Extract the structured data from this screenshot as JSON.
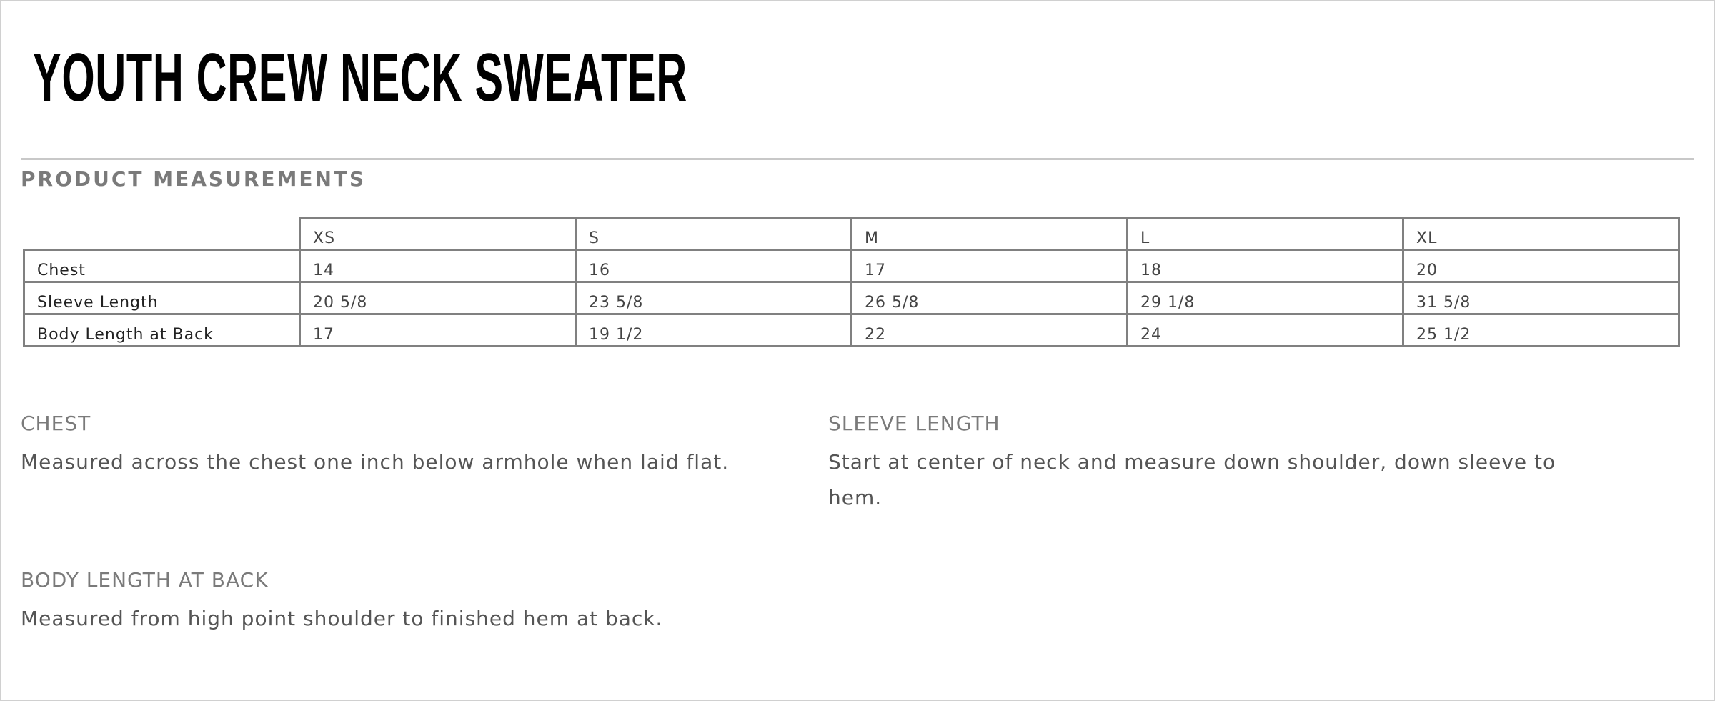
{
  "title": "YOUTH CREW NECK SWEATER",
  "section_title": "PRODUCT MEASUREMENTS",
  "table": {
    "sizes": [
      "XS",
      "S",
      "M",
      "L",
      "XL"
    ],
    "rows": [
      {
        "label": "Chest",
        "values": [
          "14",
          "16",
          "17",
          "18",
          "20"
        ]
      },
      {
        "label": "Sleeve Length",
        "values": [
          "20 5/8",
          "23 5/8",
          "26 5/8",
          "29 1/8",
          "31 5/8"
        ]
      },
      {
        "label": "Body Length at Back",
        "values": [
          "17",
          "19 1/2",
          "22",
          "24",
          "25 1/2"
        ]
      }
    ]
  },
  "notes": {
    "chest": {
      "heading": "CHEST",
      "text": "Measured across the chest one inch below armhole when laid flat."
    },
    "sleeve": {
      "heading": "SLEEVE LENGTH",
      "text": "Start at center of neck and measure down shoulder, down sleeve to hem."
    },
    "body": {
      "heading": "BODY LENGTH AT BACK",
      "text": "Measured from high point shoulder to finished hem at back."
    }
  }
}
